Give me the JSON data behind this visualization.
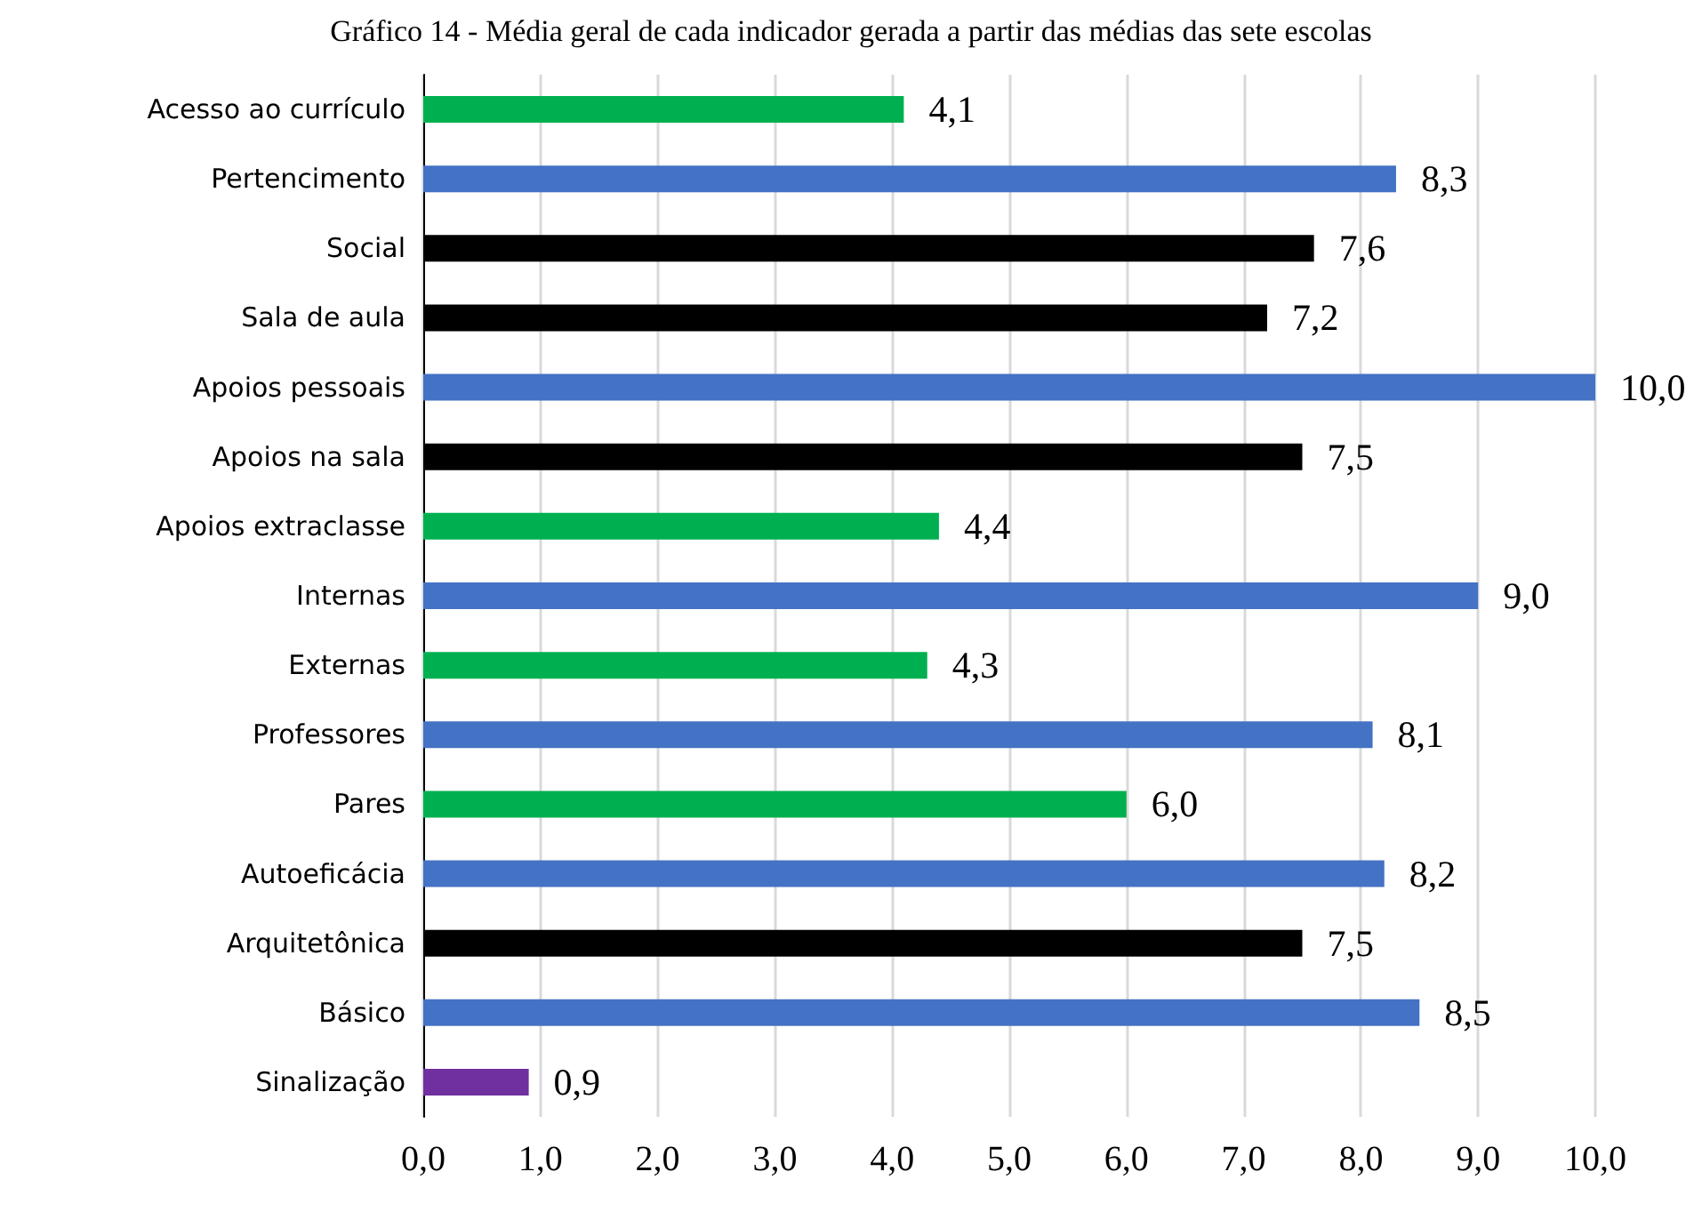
{
  "chart_data": {
    "type": "bar",
    "orientation": "horizontal",
    "title": "Gráfico 14 - Média geral de cada indicador gerada a partir das médias das sete escolas",
    "categories": [
      "Acesso ao currículo",
      "Pertencimento",
      "Social",
      "Sala de aula",
      "Apoios pessoais",
      "Apoios na sala",
      "Apoios extraclasse",
      "Internas",
      "Externas",
      "Professores",
      "Pares",
      "Autoeficácia",
      "Arquitetônica",
      "Básico",
      "Sinalização"
    ],
    "values": [
      4.1,
      8.3,
      7.6,
      7.2,
      10.0,
      7.5,
      4.4,
      9.0,
      4.3,
      8.1,
      6.0,
      8.2,
      7.5,
      8.5,
      0.9
    ],
    "colors": [
      "#00b050",
      "#4472c4",
      "#000000",
      "#000000",
      "#4472c4",
      "#000000",
      "#00b050",
      "#4472c4",
      "#00b050",
      "#4472c4",
      "#00b050",
      "#4472c4",
      "#000000",
      "#4472c4",
      "#7030a0"
    ],
    "value_labels": [
      "4,1",
      "8,3",
      "7,6",
      "7,2",
      "10,0",
      "7,5",
      "4,4",
      "9,0",
      "4,3",
      "8,1",
      "6,0",
      "8,2",
      "7,5",
      "8,5",
      "0,9"
    ],
    "xlim": [
      0,
      10
    ],
    "xticks": [
      {
        "value": 0,
        "label": "0,0"
      },
      {
        "value": 1,
        "label": "1,0"
      },
      {
        "value": 2,
        "label": "2,0"
      },
      {
        "value": 3,
        "label": "3,0"
      },
      {
        "value": 4,
        "label": "4,0"
      },
      {
        "value": 5,
        "label": "5,0"
      },
      {
        "value": 6,
        "label": "6,0"
      },
      {
        "value": 7,
        "label": "7,0"
      },
      {
        "value": 8,
        "label": "8,0"
      },
      {
        "value": 9,
        "label": "9,0"
      },
      {
        "value": 10,
        "label": "10,0"
      }
    ],
    "grid": "x"
  }
}
